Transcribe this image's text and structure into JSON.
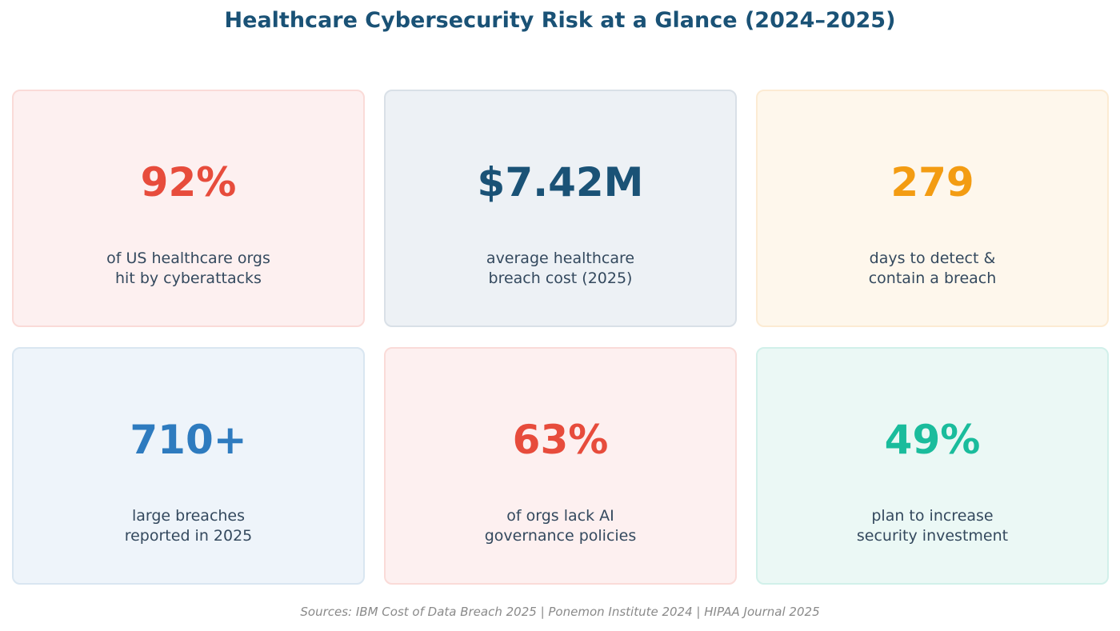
{
  "title": "Healthcare Cybersecurity Risk at a Glance (2024–2025)",
  "title_color": "#1a5276",
  "cards": [
    {
      "value": "92%",
      "line1": "of US healthcare orgs",
      "line2": "hit by cyberattacks",
      "accent": "#e74c3c",
      "background": "#fdf0f0",
      "border": "#fadbd8"
    },
    {
      "value": "$7.42M",
      "line1": "average healthcare",
      "line2": "breach cost (2025)",
      "accent": "#1a5276",
      "background": "#edf1f5",
      "border": "#d9e0e7"
    },
    {
      "value": "279",
      "line1": "days to detect &",
      "line2": "contain a breach",
      "accent": "#f39c12",
      "background": "#fef7ec",
      "border": "#fcebd3"
    },
    {
      "value": "710+",
      "line1": "large breaches",
      "line2": "reported in 2025",
      "accent": "#2e7bbf",
      "background": "#eef4fa",
      "border": "#d9e6f1"
    },
    {
      "value": "63%",
      "line1": "of orgs lack AI",
      "line2": "governance policies",
      "accent": "#e74c3c",
      "background": "#fdf0f0",
      "border": "#fadbd8"
    },
    {
      "value": "49%",
      "line1": "plan to increase",
      "line2": "security investment",
      "accent": "#1abc9c",
      "background": "#ebf8f5",
      "border": "#d1f0ea"
    }
  ],
  "footer": "Sources: IBM Cost of Data Breach 2025 | Ponemon Institute 2024 | HIPAA Journal 2025"
}
